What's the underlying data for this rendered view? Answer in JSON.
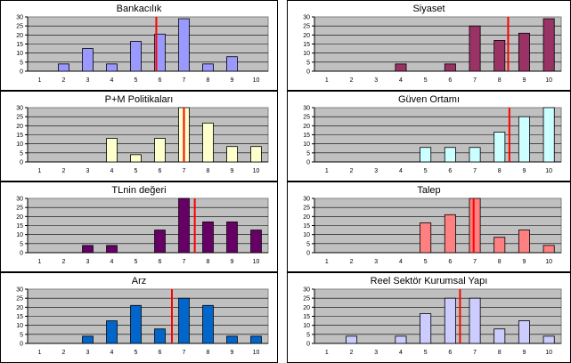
{
  "chart_data": [
    {
      "type": "bar",
      "title": "Bankacılık",
      "categories": [
        "1",
        "2",
        "3",
        "4",
        "5",
        "6",
        "7",
        "8",
        "9",
        "10"
      ],
      "values": [
        0,
        4,
        12.5,
        4,
        16.5,
        20.5,
        29,
        4,
        8,
        0
      ],
      "ylim": [
        0,
        30
      ],
      "yticks": [
        0,
        5,
        10,
        15,
        20,
        25,
        30
      ],
      "marker": 5.85,
      "colors": {
        "bar": "#9999ff",
        "marker": "#ff0000",
        "plot_bg": "#c0c0c0"
      },
      "grid": true
    },
    {
      "type": "bar",
      "title": "Siyaset",
      "categories": [
        "1",
        "2",
        "3",
        "4",
        "5",
        "6",
        "7",
        "8",
        "9",
        "10"
      ],
      "values": [
        0,
        0,
        0,
        4,
        0,
        4,
        25,
        17,
        21,
        29
      ],
      "ylim": [
        0,
        30
      ],
      "yticks": [
        0,
        5,
        10,
        15,
        20,
        25,
        30
      ],
      "marker": 8.35,
      "colors": {
        "bar": "#993366",
        "marker": "#ff0000",
        "plot_bg": "#c0c0c0"
      },
      "grid": true
    },
    {
      "type": "bar",
      "title": "P+M Politikaları",
      "categories": [
        "1",
        "2",
        "3",
        "4",
        "5",
        "6",
        "7",
        "8",
        "9",
        "10"
      ],
      "values": [
        0,
        0,
        0,
        13,
        4,
        13,
        30,
        21.5,
        8.5,
        8.5
      ],
      "ylim": [
        0,
        30
      ],
      "yticks": [
        0,
        5,
        10,
        15,
        20,
        25,
        30
      ],
      "marker": 7,
      "colors": {
        "bar": "#ffffcc",
        "marker": "#ff0000",
        "plot_bg": "#c0c0c0"
      },
      "grid": true
    },
    {
      "type": "bar",
      "title": "Güven Ortamı",
      "categories": [
        "1",
        "2",
        "3",
        "4",
        "5",
        "6",
        "7",
        "8",
        "9",
        "10"
      ],
      "values": [
        0,
        0,
        0,
        0,
        8,
        8,
        8,
        16.5,
        25,
        30
      ],
      "ylim": [
        0,
        30
      ],
      "yticks": [
        0,
        5,
        10,
        15,
        20,
        25,
        30
      ],
      "marker": 8.4,
      "colors": {
        "bar": "#ccffff",
        "marker": "#ff0000",
        "plot_bg": "#c0c0c0"
      },
      "grid": true
    },
    {
      "type": "bar",
      "title": "TLnin değeri",
      "categories": [
        "1",
        "2",
        "3",
        "4",
        "5",
        "6",
        "7",
        "8",
        "9",
        "10"
      ],
      "values": [
        0,
        0,
        4,
        4,
        0,
        12.5,
        30,
        17,
        17,
        12.5
      ],
      "ylim": [
        0,
        30
      ],
      "yticks": [
        0,
        5,
        10,
        15,
        20,
        25,
        30
      ],
      "marker": 7.45,
      "colors": {
        "bar": "#660066",
        "marker": "#ff0000",
        "plot_bg": "#c0c0c0"
      },
      "grid": true
    },
    {
      "type": "bar",
      "title": "Talep",
      "categories": [
        "1",
        "2",
        "3",
        "4",
        "5",
        "6",
        "7",
        "8",
        "9",
        "10"
      ],
      "values": [
        0,
        0,
        0,
        0,
        16.5,
        21,
        30,
        8.5,
        12.5,
        4
      ],
      "ylim": [
        0,
        30
      ],
      "yticks": [
        0,
        5,
        10,
        15,
        20,
        25,
        30
      ],
      "marker": 6.95,
      "colors": {
        "bar": "#ff8080",
        "marker": "#ff0000",
        "plot_bg": "#c0c0c0"
      },
      "grid": true
    },
    {
      "type": "bar",
      "title": "Arz",
      "categories": [
        "1",
        "2",
        "3",
        "4",
        "5",
        "6",
        "7",
        "8",
        "9",
        "10"
      ],
      "values": [
        0,
        0,
        4,
        12.5,
        21,
        8,
        25,
        21,
        4,
        4
      ],
      "ylim": [
        0,
        30
      ],
      "yticks": [
        0,
        5,
        10,
        15,
        20,
        25,
        30
      ],
      "marker": 6.5,
      "colors": {
        "bar": "#0066cc",
        "marker": "#ff0000",
        "plot_bg": "#c0c0c0"
      },
      "grid": true
    },
    {
      "type": "bar",
      "title": "Reel Sektör Kurumsal Yapı",
      "categories": [
        "1",
        "2",
        "3",
        "4",
        "5",
        "6",
        "7",
        "8",
        "9",
        "10"
      ],
      "values": [
        0,
        4,
        0,
        4,
        16.5,
        25,
        25,
        8,
        12.5,
        4
      ],
      "ylim": [
        0,
        30
      ],
      "yticks": [
        0,
        5,
        10,
        15,
        20,
        25,
        30
      ],
      "marker": 6.4,
      "colors": {
        "bar": "#ccccff",
        "marker": "#ff0000",
        "plot_bg": "#c0c0c0"
      },
      "grid": true
    }
  ]
}
